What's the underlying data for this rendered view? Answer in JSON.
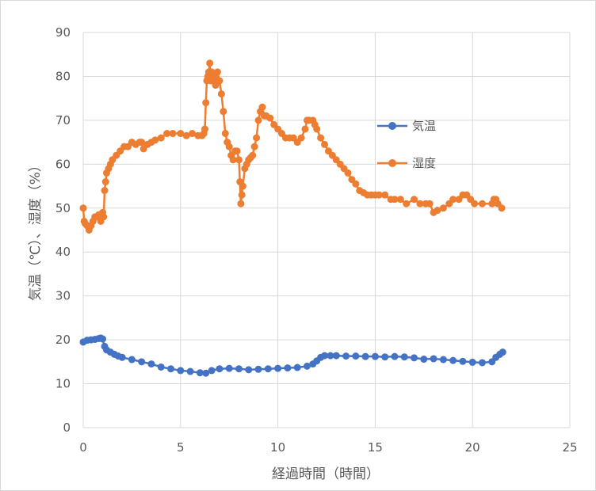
{
  "chart_data": {
    "type": "line",
    "xlabel": "経過時間（時間）",
    "ylabel": "気温（℃）、湿度（%）",
    "xlim": [
      0,
      25
    ],
    "ylim": [
      0,
      90
    ],
    "x_ticks": [
      "0",
      "5",
      "10",
      "15",
      "20",
      "25"
    ],
    "y_ticks": [
      "0",
      "10",
      "20",
      "30",
      "40",
      "50",
      "60",
      "70",
      "80",
      "90"
    ],
    "grid": true,
    "legend_position": "right",
    "series": [
      {
        "name": "気温",
        "color": "#4472C4",
        "x": [
          0,
          0.2,
          0.4,
          0.6,
          0.8,
          0.9,
          1.0,
          1.1,
          1.2,
          1.4,
          1.6,
          1.8,
          2.0,
          2.5,
          3.0,
          3.5,
          4.0,
          4.5,
          5.0,
          5.5,
          6.0,
          6.3,
          6.6,
          7.0,
          7.5,
          8.0,
          8.5,
          9.0,
          9.5,
          10.0,
          10.5,
          11.0,
          11.5,
          11.8,
          12.0,
          12.2,
          12.4,
          12.7,
          13.0,
          13.5,
          14.0,
          14.5,
          15.0,
          15.5,
          16.0,
          16.5,
          17.0,
          17.5,
          18.0,
          18.5,
          19.0,
          19.5,
          20.0,
          20.5,
          21.0,
          21.2,
          21.4,
          21.55
        ],
        "values": [
          19.5,
          19.9,
          20.0,
          20.1,
          20.3,
          20.4,
          20.2,
          18.5,
          17.7,
          17.2,
          16.7,
          16.3,
          16.0,
          15.5,
          15.0,
          14.5,
          13.8,
          13.4,
          13.0,
          12.8,
          12.5,
          12.4,
          13.0,
          13.4,
          13.5,
          13.4,
          13.2,
          13.3,
          13.4,
          13.5,
          13.6,
          13.7,
          14.0,
          14.5,
          15.2,
          16.0,
          16.4,
          16.4,
          16.4,
          16.3,
          16.3,
          16.2,
          16.2,
          16.1,
          16.2,
          16.1,
          15.9,
          15.6,
          15.7,
          15.5,
          15.3,
          15.1,
          14.9,
          14.8,
          15.0,
          16.0,
          16.7,
          17.2
        ]
      },
      {
        "name": "湿度",
        "color": "#ED7D31",
        "x": [
          0,
          0.05,
          0.1,
          0.2,
          0.3,
          0.4,
          0.5,
          0.6,
          0.7,
          0.8,
          0.9,
          0.95,
          1.0,
          1.05,
          1.1,
          1.15,
          1.2,
          1.3,
          1.4,
          1.5,
          1.7,
          1.9,
          2.1,
          2.3,
          2.5,
          2.7,
          2.9,
          3.0,
          3.1,
          3.3,
          3.5,
          3.7,
          4.0,
          4.3,
          4.6,
          5.0,
          5.3,
          5.6,
          5.9,
          6.1,
          6.2,
          6.25,
          6.3,
          6.35,
          6.4,
          6.45,
          6.5,
          6.55,
          6.6,
          6.7,
          6.8,
          6.9,
          7.0,
          7.1,
          7.2,
          7.3,
          7.4,
          7.5,
          7.6,
          7.7,
          7.8,
          7.9,
          8.0,
          8.05,
          8.1,
          8.15,
          8.2,
          8.3,
          8.4,
          8.5,
          8.6,
          8.7,
          8.8,
          8.9,
          9.0,
          9.1,
          9.2,
          9.3,
          9.4,
          9.6,
          9.8,
          10.0,
          10.2,
          10.4,
          10.6,
          10.8,
          11.0,
          11.2,
          11.4,
          11.5,
          11.6,
          11.8,
          11.9,
          12.0,
          12.2,
          12.4,
          12.6,
          12.8,
          13.0,
          13.2,
          13.4,
          13.6,
          13.8,
          14.0,
          14.2,
          14.4,
          14.6,
          14.8,
          15.0,
          15.2,
          15.5,
          15.8,
          16.0,
          16.3,
          16.6,
          17.0,
          17.3,
          17.6,
          17.8,
          18.0,
          18.2,
          18.5,
          18.8,
          19.0,
          19.3,
          19.5,
          19.7,
          19.9,
          20.1,
          20.5,
          21.0,
          21.1,
          21.2,
          21.3,
          21.5
        ],
        "values": [
          50,
          47,
          46.5,
          46,
          45,
          46,
          47,
          48,
          48,
          48.5,
          47,
          48,
          49,
          48,
          54,
          56,
          58,
          59,
          60,
          61,
          62,
          63,
          64,
          64,
          65,
          64.5,
          65,
          65,
          63.5,
          64.5,
          65,
          65.5,
          66,
          67,
          67,
          67,
          66.5,
          67,
          66.5,
          66.5,
          67,
          68,
          74,
          79,
          80,
          81,
          83,
          79,
          81,
          80,
          78,
          81,
          79,
          76,
          72,
          67,
          65,
          64,
          62,
          61,
          63,
          63,
          61,
          56,
          51,
          53,
          55,
          59,
          60,
          61,
          61.5,
          62,
          64,
          66,
          70,
          72,
          73,
          71,
          71,
          70.5,
          69,
          68,
          67,
          66,
          66,
          66,
          65,
          66,
          68,
          70,
          70,
          70,
          69,
          68,
          66,
          64.5,
          63,
          62,
          61,
          60,
          59,
          58,
          56.5,
          55.5,
          54,
          53.5,
          53,
          53,
          53,
          53,
          53,
          52,
          52,
          52,
          51,
          52,
          51,
          51,
          51,
          49,
          49.5,
          50,
          51,
          52,
          52,
          53,
          53,
          52,
          51,
          51,
          51,
          52,
          52,
          51,
          50
        ]
      }
    ]
  }
}
